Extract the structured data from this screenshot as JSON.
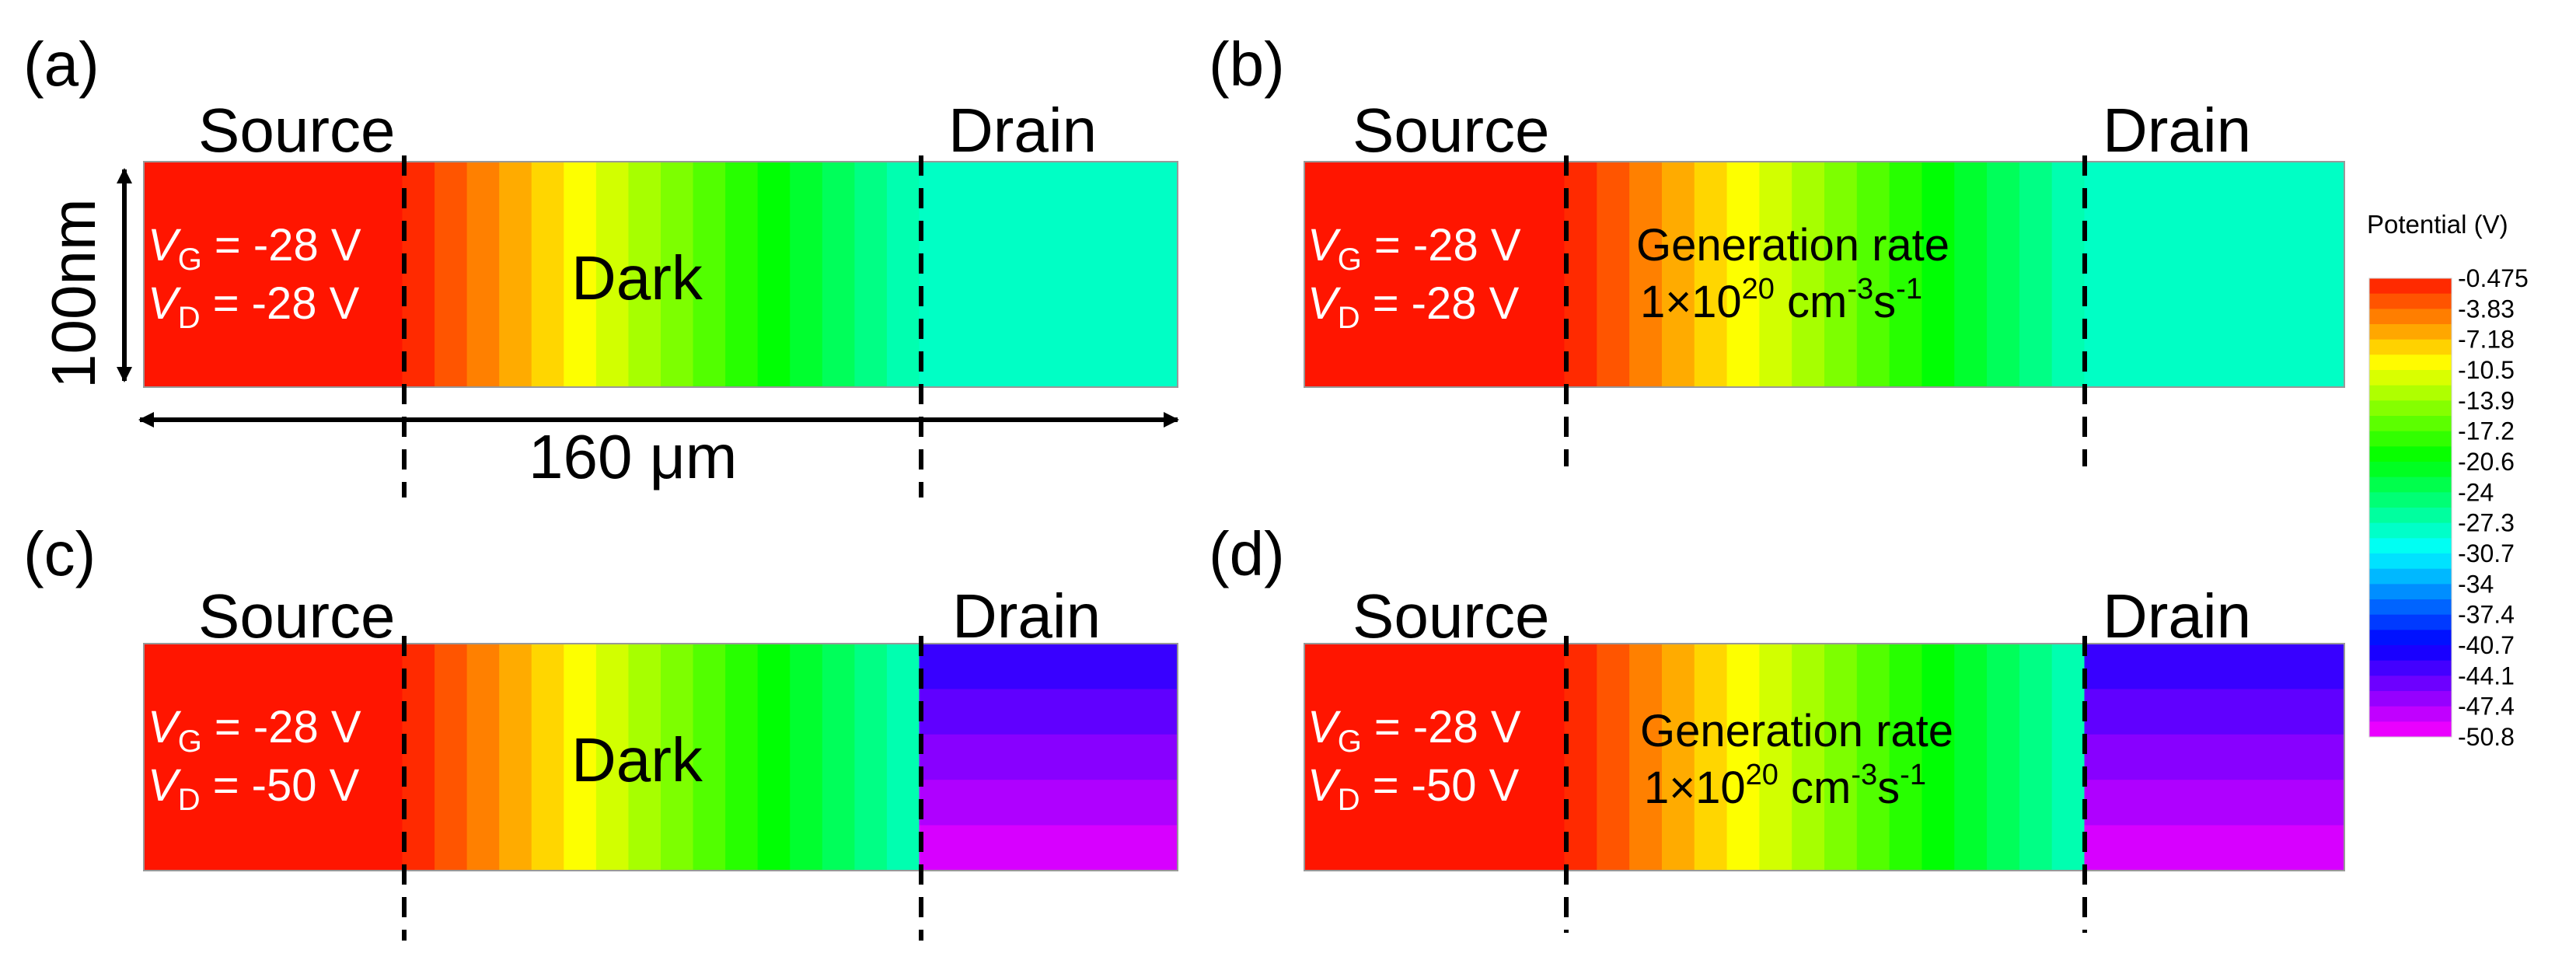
{
  "chart_data": {
    "type": "heatmap",
    "colorbar": {
      "title": "Potential (V)",
      "ticks": [
        "-0.475",
        "-3.83",
        "-7.18",
        "-10.5",
        "-13.9",
        "-17.2",
        "-20.6",
        "-24",
        "-27.3",
        "-30.7",
        "-34",
        "-37.4",
        "-40.7",
        "-44.1",
        "-47.4",
        "-50.8"
      ],
      "range": [
        -50.8,
        -0.475
      ]
    },
    "dimensions": {
      "height_label": "100nm",
      "width_label": "160 μm"
    },
    "panels": [
      {
        "label": "(a)",
        "source_label": "Source",
        "drain_label": "Drain",
        "vg": "V",
        "vg_sub": "G",
        "vg_value": " = -28 V",
        "vd": "V",
        "vd_sub": "D",
        "vd_value": " = -28 V",
        "condition": "Dark",
        "drain_potential": -28,
        "generation": null
      },
      {
        "label": "(b)",
        "source_label": "Source",
        "drain_label": "Drain",
        "vg": "V",
        "vg_sub": "G",
        "vg_value": " = -28 V",
        "vd": "V",
        "vd_sub": "D",
        "vd_value": " = -28 V",
        "condition": "Generation rate",
        "drain_potential": -28,
        "generation": {
          "prefix": "1×10",
          "exp": "20",
          "unit1": " cm",
          "exp2": "-3",
          "unit2": "s",
          "exp3": "-1"
        }
      },
      {
        "label": "(c)",
        "source_label": "Source",
        "drain_label": "Drain",
        "vg": "V",
        "vg_sub": "G",
        "vg_value": " = -28 V",
        "vd": "V",
        "vd_sub": "D",
        "vd_value": " = -50 V",
        "condition": "Dark",
        "drain_potential": -50,
        "generation": null
      },
      {
        "label": "(d)",
        "source_label": "Source",
        "drain_label": "Drain",
        "vg": "V",
        "vg_sub": "G",
        "vg_value": " = -28 V",
        "vd": "V",
        "vd_sub": "D",
        "vd_value": " = -50 V",
        "condition": "Generation rate",
        "drain_potential": -50,
        "generation": {
          "prefix": "1×10",
          "exp": "20",
          "unit1": " cm",
          "exp2": "-3",
          "unit2": "s",
          "exp3": "-1"
        }
      }
    ]
  }
}
